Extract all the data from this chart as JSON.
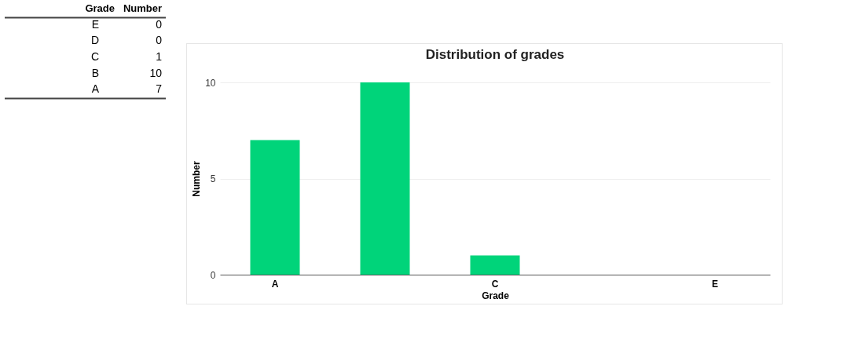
{
  "chart_data": [
    {
      "type": "other",
      "xlabel": "Grade",
      "ylabel": "Number",
      "categories": [
        "E",
        "D",
        "C",
        "B",
        "A"
      ],
      "values": [
        0,
        0,
        1,
        10,
        7
      ],
      "data_labels": true
    },
    {
      "type": "bar",
      "title": "Distribution of grades",
      "xlabel": "Grade",
      "ylabel": "Number",
      "categories": [
        "A",
        null,
        "C",
        null,
        "E"
      ],
      "values": [
        7,
        10,
        1,
        0,
        0
      ],
      "color": "#00d47a",
      "ylim": [
        0,
        10
      ],
      "yticks": [
        0,
        5,
        10
      ],
      "grid": "y"
    }
  ]
}
